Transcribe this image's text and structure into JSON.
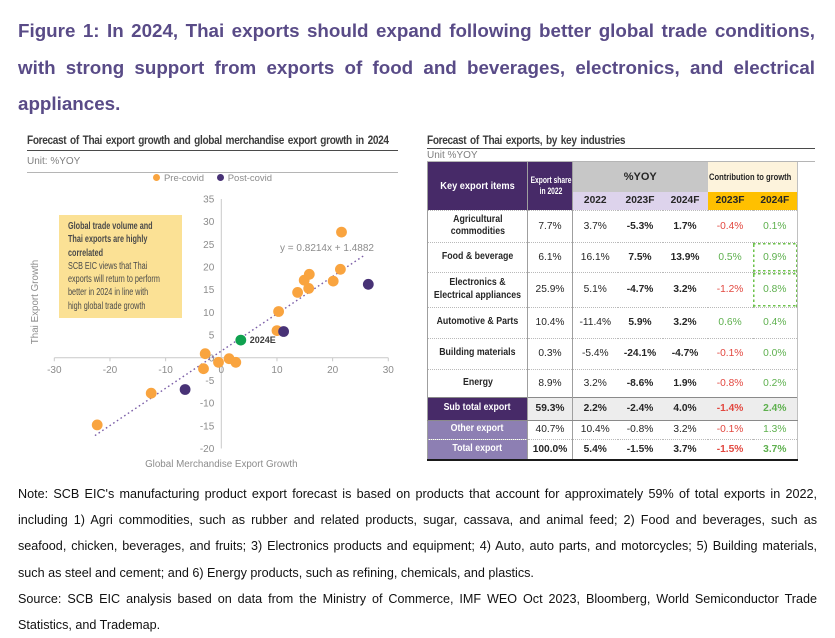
{
  "figure_title": "Figure 1: In 2024, Thai exports should expand following better global trade conditions, with strong support from exports of food and beverages, electronics, and electrical appliances.",
  "colors": {
    "title_purple": "#594B87",
    "table_header_purple": "#472A68",
    "table_row_purple": "#8D7FB3",
    "amber": "#FFC000",
    "lavender": "#DDD3EC",
    "gray_band": "#C7C7C7",
    "cream": "#FDF3DC",
    "positive_green": "#5EB04E",
    "negative_red": "#E2473F",
    "annotation_yellow": "#FBE195",
    "pre_covid_orange": "#F9A43F",
    "post_covid_purple": "#483276",
    "estimate_green": "#0FA14F",
    "trendline_purple": "#7B5EA7"
  },
  "chart_data": [
    {
      "type": "scatter",
      "title": "Forecast of Thai export growth and global merchandise export growth in 2024",
      "unit": "Unit: %YOY",
      "xlabel": "Global Merchandise Export Growth",
      "ylabel": "Thai Export Growth",
      "xlim": [
        -30,
        30
      ],
      "ylim": [
        -20,
        35
      ],
      "xticks": [
        -30,
        -20,
        -10,
        0,
        10,
        20,
        30
      ],
      "yticks": [
        35,
        30,
        25,
        20,
        15,
        10,
        5,
        0,
        -5,
        -10,
        -15,
        -20
      ],
      "series": [
        {
          "name": "Pre-covid",
          "color": "#F9A43F",
          "points": [
            [
              -22.3,
              -14.8
            ],
            [
              -12.6,
              -7.8
            ],
            [
              -3.2,
              -2.4
            ],
            [
              -2.9,
              0.9
            ],
            [
              -0.5,
              -1.0
            ],
            [
              1.4,
              -0.2
            ],
            [
              2.6,
              -1.0
            ],
            [
              10.0,
              6.0
            ],
            [
              10.3,
              10.2
            ],
            [
              13.7,
              14.4
            ],
            [
              14.9,
              17.1
            ],
            [
              15.7,
              15.3
            ],
            [
              15.8,
              18.4
            ],
            [
              20.1,
              16.9
            ],
            [
              21.4,
              19.5
            ],
            [
              21.6,
              27.7
            ]
          ]
        },
        {
          "name": "Post-covid",
          "color": "#483276",
          "points": [
            [
              -6.5,
              -7.0
            ],
            [
              11.2,
              5.8
            ],
            [
              26.4,
              16.2
            ]
          ]
        },
        {
          "name": "2024E",
          "color": "#0FA14F",
          "points": [
            [
              3.5,
              3.9
            ]
          ],
          "point_label": "2024E"
        }
      ],
      "trendline": {
        "equation": "y = 0.8214x + 1.4882",
        "slope": 0.8214,
        "intercept": 1.4882,
        "x_start": -22.7,
        "x_end": 25.8
      },
      "annotation": {
        "heading": "Global trade volume and\nThai exports are highly\ncorrelated",
        "body": "SCB EIC views that Thai\nexports will return to perform\nbetter in 2024 in line with\nhigh global trade growth"
      }
    },
    {
      "type": "table",
      "title": "Forecast of Thai exports, by key industries",
      "unit": "Unit %YOY",
      "headers": {
        "key": "Key export items",
        "share": "Export share in 2022",
        "yoy": "%YOY",
        "contribution": "Contribution to growth",
        "yoy_years": [
          "2022",
          "2023F",
          "2024F"
        ],
        "contribution_years": [
          "2023F",
          "2024F"
        ]
      },
      "rows": [
        {
          "item": "Agricultural\ncommodities",
          "share": "7.7%",
          "yoy": [
            "3.7%",
            "-5.3%",
            "1.7%"
          ],
          "contribution": [
            "-0.4%",
            "0.1%"
          ],
          "highlight_2024f": false
        },
        {
          "item": "Food & beverage",
          "share": "6.1%",
          "yoy": [
            "16.1%",
            "7.5%",
            "13.9%"
          ],
          "contribution": [
            "0.5%",
            "0.9%"
          ],
          "highlight_2024f": true
        },
        {
          "item": "Electronics &\nElectrical appliances",
          "share": "25.9%",
          "yoy": [
            "5.1%",
            "-4.7%",
            "3.2%"
          ],
          "contribution": [
            "-1.2%",
            "0.8%"
          ],
          "highlight_2024f": true
        },
        {
          "item": "Automotive & Parts",
          "share": "10.4%",
          "yoy": [
            "-11.4%",
            "5.9%",
            "3.2%"
          ],
          "contribution": [
            "0.6%",
            "0.4%"
          ],
          "highlight_2024f": false
        },
        {
          "item": "Building materials",
          "share": "0.3%",
          "yoy": [
            "-5.4%",
            "-24.1%",
            "-4.7%"
          ],
          "contribution": [
            "-0.1%",
            "0.0%"
          ],
          "highlight_2024f": false
        },
        {
          "item": "Energy",
          "share": "8.9%",
          "yoy": [
            "3.2%",
            "-8.6%",
            "1.9%"
          ],
          "contribution": [
            "-0.8%",
            "0.2%"
          ],
          "highlight_2024f": false
        }
      ],
      "summary_rows": [
        {
          "item": "Sub total export",
          "share": "59.3%",
          "yoy": [
            "2.2%",
            "-2.4%",
            "4.0%"
          ],
          "contribution": [
            "-1.4%",
            "2.4%"
          ],
          "style": "subtotal"
        },
        {
          "item": "Other export",
          "share": "40.7%",
          "yoy": [
            "10.4%",
            "-0.8%",
            "3.2%"
          ],
          "contribution": [
            "-0.1%",
            "1.3%"
          ],
          "style": "other"
        },
        {
          "item": "Total export",
          "share": "100.0%",
          "yoy": [
            "5.4%",
            "-1.5%",
            "3.7%"
          ],
          "contribution": [
            "-1.5%",
            "3.7%"
          ],
          "style": "total"
        }
      ]
    }
  ],
  "notes": {
    "note": "Note: SCB EIC's manufacturing product export forecast is based on products that account for approximately 59% of total exports in 2022, including 1) Agri commodities, such as rubber and related products, sugar, cassava, and animal feed; 2) Food and beverages, such as seafood, chicken, beverages, and fruits; 3) Electronics products and equipment; 4) Auto, auto parts, and motorcycles; 5) Building materials, such as steel and cement; and 6) Energy products, such as refining, chemicals, and plastics.",
    "source": "Source: SCB EIC analysis based on data from the Ministry of Commerce, IMF WEO Oct 2023, Bloomberg, World Semiconductor Trade Statistics, and Trademap."
  }
}
